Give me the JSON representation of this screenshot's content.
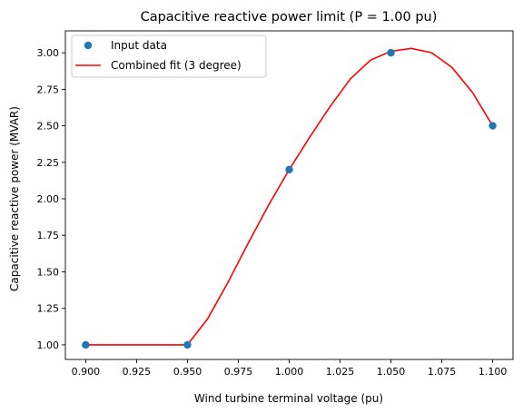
{
  "chart_data": {
    "type": "scatter",
    "title": "Capacitive reactive power limit (P = 1.00 pu)",
    "xlabel": "Wind turbine terminal voltage (pu)",
    "ylabel": "Capacitive reactive power (MVAR)",
    "xlim": [
      0.89,
      1.11
    ],
    "ylim": [
      0.9,
      3.15
    ],
    "xticks": [
      0.9,
      0.925,
      0.95,
      0.975,
      1.0,
      1.025,
      1.05,
      1.075,
      1.1
    ],
    "xtick_labels": [
      "0.900",
      "0.925",
      "0.950",
      "0.975",
      "1.000",
      "1.025",
      "1.050",
      "1.075",
      "1.100"
    ],
    "yticks": [
      1.0,
      1.25,
      1.5,
      1.75,
      2.0,
      2.25,
      2.5,
      2.75,
      3.0
    ],
    "ytick_labels": [
      "1.00",
      "1.25",
      "1.50",
      "1.75",
      "2.00",
      "2.25",
      "2.50",
      "2.75",
      "3.00"
    ],
    "grid": false,
    "legend_position": "top-left",
    "series": [
      {
        "name": "Input data",
        "type": "scatter",
        "color": "#1f77b4",
        "x": [
          0.9,
          0.95,
          1.0,
          1.05,
          1.1
        ],
        "y": [
          1.0,
          1.0,
          2.2,
          3.0,
          2.5
        ]
      },
      {
        "name": "Combined fit (3 degree)",
        "type": "line",
        "color": "#ff0000",
        "x": [
          0.9,
          0.95,
          0.96,
          0.97,
          0.98,
          0.99,
          1.0,
          1.01,
          1.02,
          1.03,
          1.04,
          1.05,
          1.06,
          1.07,
          1.08,
          1.09,
          1.1
        ],
        "y": [
          1.0,
          1.0,
          1.18,
          1.43,
          1.7,
          1.96,
          2.2,
          2.42,
          2.63,
          2.82,
          2.95,
          3.01,
          3.03,
          3.0,
          2.9,
          2.73,
          2.5
        ]
      }
    ]
  }
}
